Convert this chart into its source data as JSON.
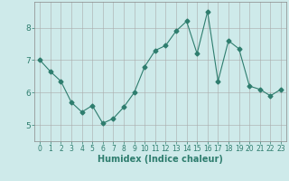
{
  "x": [
    0,
    1,
    2,
    3,
    4,
    5,
    6,
    7,
    8,
    9,
    10,
    11,
    12,
    13,
    14,
    15,
    16,
    17,
    18,
    19,
    20,
    21,
    22,
    23
  ],
  "y": [
    7.0,
    6.65,
    6.35,
    5.7,
    5.4,
    5.6,
    5.05,
    5.2,
    5.55,
    6.0,
    6.8,
    7.3,
    7.45,
    7.9,
    8.2,
    7.2,
    8.5,
    6.35,
    7.6,
    7.35,
    6.2,
    6.1,
    5.9,
    6.1
  ],
  "line_color": "#2e7d6e",
  "marker": "D",
  "marker_size": 2.5,
  "bg_color": "#ceeaea",
  "grid_color": "#aaaaaa",
  "xlabel": "Humidex (Indice chaleur)",
  "xlabel_fontsize": 7,
  "tick_fontsize": 6,
  "ylim": [
    4.5,
    8.8
  ],
  "yticks": [
    5,
    6,
    7,
    8
  ],
  "xticks": [
    0,
    1,
    2,
    3,
    4,
    5,
    6,
    7,
    8,
    9,
    10,
    11,
    12,
    13,
    14,
    15,
    16,
    17,
    18,
    19,
    20,
    21,
    22,
    23
  ]
}
